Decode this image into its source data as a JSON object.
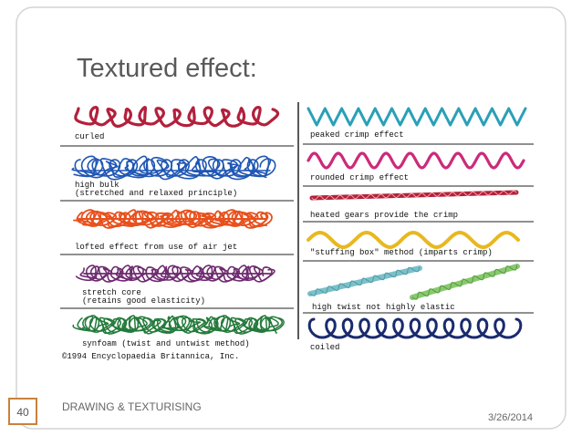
{
  "slide": {
    "title": "Textured effect:",
    "figure": {
      "left": [
        {
          "label": [
            "curled"
          ]
        },
        {
          "label": [
            "high bulk",
            "(stretched and relaxed principle)"
          ]
        },
        {
          "label": [
            "lofted effect from use of air jet"
          ]
        },
        {
          "label": [
            "stretch core",
            "(retains good elasticity)"
          ]
        },
        {
          "label": [
            "synfoam (twist and untwist method)"
          ]
        }
      ],
      "right": [
        {
          "label": [
            "peaked crimp effect"
          ]
        },
        {
          "label": [
            "rounded crimp effect"
          ]
        },
        {
          "label": [
            "heated gears provide the crimp"
          ]
        },
        {
          "label": [
            "\"stuffing box\" method (imparts crimp)"
          ]
        },
        {
          "label": [
            "high twist not highly elastic"
          ]
        },
        {
          "label": [
            "coiled"
          ]
        }
      ],
      "credit": "©1994 Encyclopaedia Britannica, Inc."
    },
    "footer": {
      "page_number": "40",
      "text": "DRAWING & TEXTURISING",
      "date": "3/26/2014"
    }
  }
}
